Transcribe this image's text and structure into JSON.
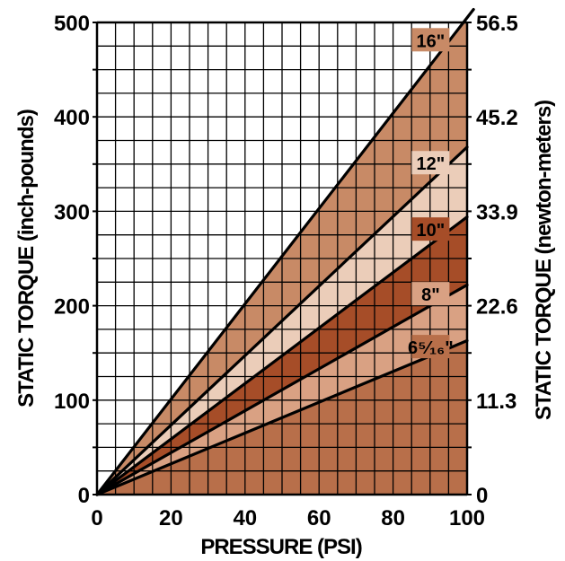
{
  "chart_data": {
    "type": "area",
    "xlabel": "PRESSURE (PSI)",
    "ylabel": "STATIC TORQUE (inch-pounds)",
    "y2label": "STATIC TORQUE (newton-meters)",
    "xlim": [
      0,
      100
    ],
    "ylim": [
      0,
      500
    ],
    "x_ticks": [
      "0",
      "20",
      "40",
      "60",
      "80",
      "100"
    ],
    "y_ticks": [
      "0",
      "100",
      "200",
      "300",
      "400",
      "500"
    ],
    "y2_ticks": [
      "0",
      "11.3",
      "22.6",
      "33.9",
      "45.2",
      "56.5"
    ],
    "grid": true,
    "x": [
      0,
      100
    ],
    "series": [
      {
        "name": "6⁵⁄₁₆\"",
        "values": [
          0,
          163
        ],
        "fill": "#b86f4a"
      },
      {
        "name": "8\"",
        "values": [
          0,
          222
        ],
        "fill": "#d9a183"
      },
      {
        "name": "10\"",
        "values": [
          0,
          294
        ],
        "fill": "#a64d28"
      },
      {
        "name": "12\"",
        "values": [
          0,
          368
        ],
        "fill": "#ebcdb9"
      },
      {
        "name": "16\"",
        "values": [
          0,
          505
        ],
        "fill": "#c88a66"
      }
    ]
  }
}
